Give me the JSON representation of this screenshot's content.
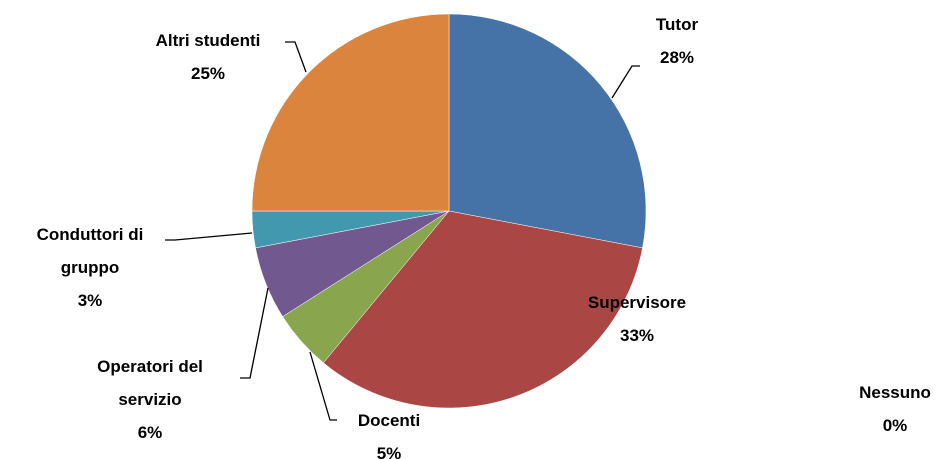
{
  "chart_data": {
    "type": "pie",
    "categories": [
      "Tutor",
      "Supervisore",
      "Docenti",
      "Operatori del servizio",
      "Conduttori di gruppo",
      "Altri studenti",
      "Nessuno"
    ],
    "values": [
      28,
      33,
      5,
      6,
      3,
      25,
      0
    ],
    "value_labels": [
      "28%",
      "33%",
      "5%",
      "6%",
      "3%",
      "25%",
      "0%"
    ],
    "colors": [
      "#4572a7",
      "#aa4643",
      "#89a54e",
      "#71588f",
      "#4198af",
      "#db843d",
      "#93a9cf"
    ]
  }
}
